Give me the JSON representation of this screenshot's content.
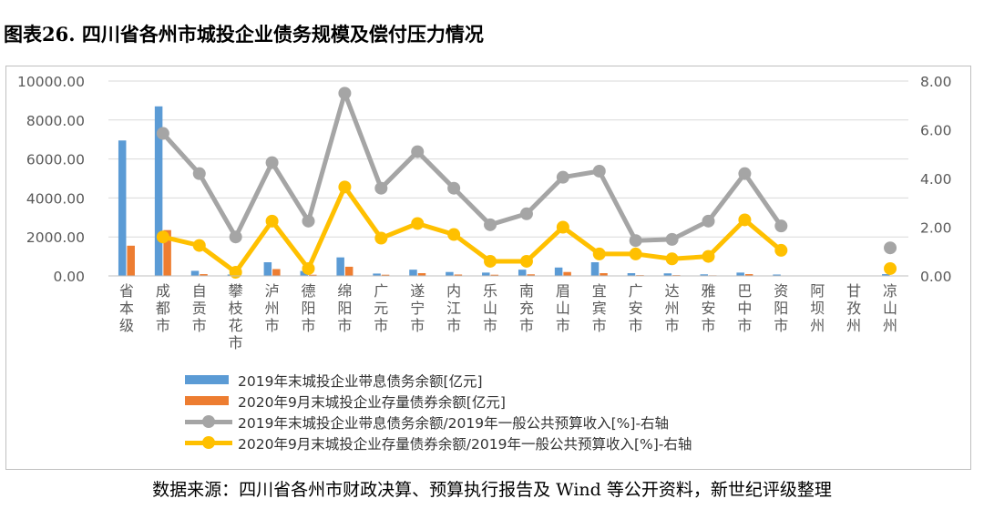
{
  "figure_title": "图表26. 四川省各州市城投企业债务规模及偿付压力情况",
  "source_note": "数据来源：四川省各州市财政决算、预算执行报告及 Wind 等公开资料，新世纪评级整理",
  "colors": {
    "bar_2019": "#5b9bd5",
    "bar_2020": "#ed7d31",
    "line_2019": "#a5a5a5",
    "line_2020": "#ffc000",
    "grid": "#d9d9d9",
    "axis_text": "#595959"
  },
  "chart_data": {
    "type": "bar",
    "title": "",
    "categories": [
      "省本级",
      "成都市",
      "自贡市",
      "攀枝花市",
      "泸州市",
      "德阳市",
      "绵阳市",
      "广元市",
      "遂宁市",
      "内江市",
      "乐山市",
      "南充市",
      "眉山市",
      "宜宾市",
      "广安市",
      "达州市",
      "雅安市",
      "巴中市",
      "资阳市",
      "阿坝州",
      "甘孜州",
      "凉山州"
    ],
    "y_left": {
      "min": 0,
      "max": 10000,
      "step": 2000,
      "tick_labels": [
        "0.00",
        "2000.00",
        "4000.00",
        "6000.00",
        "8000.00",
        "10000.00"
      ]
    },
    "y_right": {
      "min": 0,
      "max": 8,
      "step": 2,
      "tick_labels": [
        "0.00",
        "2.00",
        "4.00",
        "6.00",
        "8.00"
      ]
    },
    "grid": true,
    "legend_position": "bottom-left",
    "series": [
      {
        "name": "2019年末城投企业带息债务余额[亿元]",
        "kind": "bar",
        "axis": "left",
        "values": [
          6950,
          8700,
          260,
          70,
          700,
          250,
          950,
          120,
          320,
          200,
          170,
          320,
          430,
          700,
          140,
          130,
          80,
          170,
          70,
          null,
          null,
          90
        ]
      },
      {
        "name": "2020年9月末城投企业存量债券余额[亿元]",
        "kind": "bar",
        "axis": "left",
        "values": [
          1550,
          2350,
          90,
          20,
          350,
          60,
          470,
          60,
          140,
          70,
          60,
          80,
          200,
          140,
          40,
          40,
          30,
          90,
          20,
          null,
          null,
          20
        ]
      },
      {
        "name": "2019年末城投企业带息债务余额/2019年一般公共预算收入[%]-右轴",
        "kind": "line",
        "axis": "right",
        "values": [
          null,
          5.85,
          4.2,
          1.6,
          4.65,
          2.25,
          7.5,
          3.6,
          5.1,
          3.6,
          2.1,
          2.55,
          4.05,
          4.3,
          1.45,
          1.5,
          2.25,
          4.2,
          2.05,
          null,
          null,
          1.15
        ]
      },
      {
        "name": "2020年9月末城投企业存量债券余额/2019年一般公共预算收入[%]-右轴",
        "kind": "line",
        "axis": "right",
        "values": [
          null,
          1.6,
          1.25,
          0.15,
          2.25,
          0.3,
          3.65,
          1.55,
          2.15,
          1.7,
          0.6,
          0.6,
          2.0,
          0.9,
          0.9,
          0.7,
          0.8,
          2.3,
          1.05,
          null,
          null,
          0.3
        ]
      }
    ]
  }
}
